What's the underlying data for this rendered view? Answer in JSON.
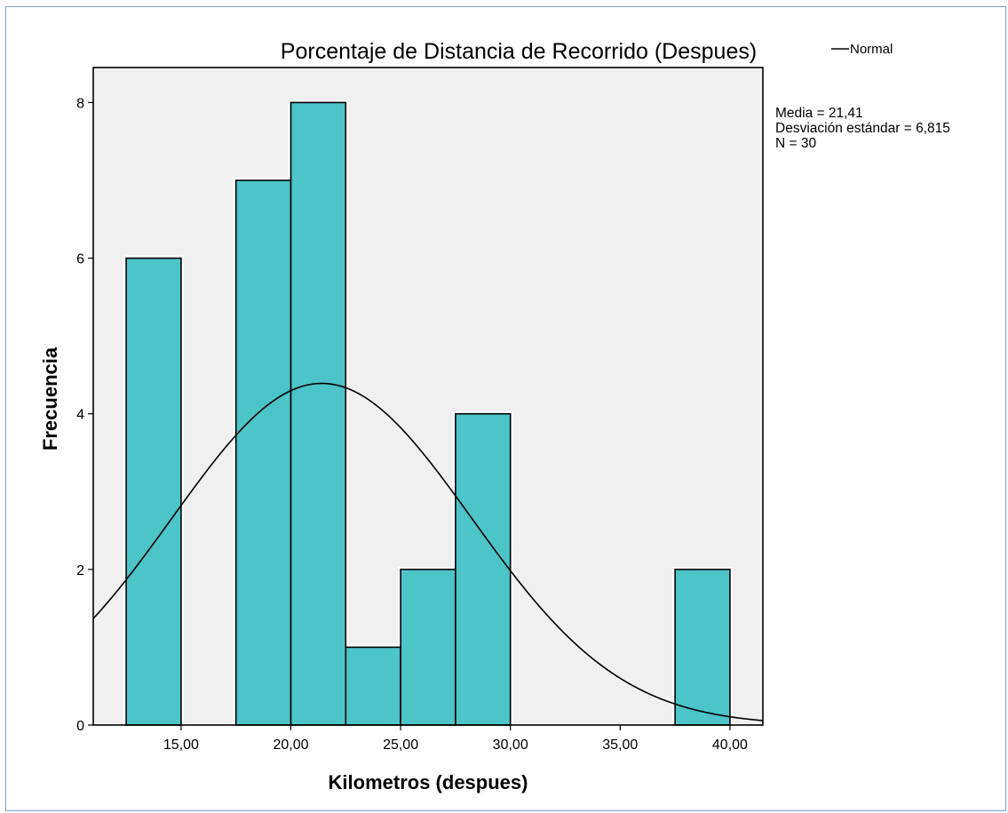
{
  "chart_data": {
    "type": "bar",
    "title": "Porcentaje de Distancia de Recorrido (Despues)",
    "xlabel": "Kilometros (despues)",
    "ylabel": "Frecuencia",
    "xlim": [
      11.0,
      41.5
    ],
    "ylim": [
      0,
      8.45
    ],
    "x_ticks": [
      15,
      20,
      25,
      30,
      35,
      40
    ],
    "x_tick_labels": [
      "15,00",
      "20,00",
      "25,00",
      "30,00",
      "35,00",
      "40,00"
    ],
    "y_ticks": [
      0,
      2,
      4,
      6,
      8
    ],
    "y_tick_labels": [
      "0",
      "2",
      "4",
      "6",
      "8"
    ],
    "bins": [
      {
        "x0": 12.5,
        "x1": 15.0,
        "count": 6
      },
      {
        "x0": 17.5,
        "x1": 20.0,
        "count": 7
      },
      {
        "x0": 20.0,
        "x1": 22.5,
        "count": 8
      },
      {
        "x0": 22.5,
        "x1": 25.0,
        "count": 1
      },
      {
        "x0": 25.0,
        "x1": 27.5,
        "count": 2
      },
      {
        "x0": 27.5,
        "x1": 30.0,
        "count": 4
      },
      {
        "x0": 37.5,
        "x1": 40.0,
        "count": 2
      }
    ],
    "normal_curve": {
      "mean": 21.41,
      "sd": 6.815,
      "n": 30,
      "bin_width": 2.5
    },
    "bar_color": "#4cc4c8",
    "plot_bg": "#f0f0f0",
    "grid": false,
    "legend": {
      "position": "top-right",
      "entries": [
        "Normal"
      ]
    }
  },
  "stats": [
    "Media = 21,41",
    "Desviación estándar = 6,815",
    "N = 30"
  ]
}
